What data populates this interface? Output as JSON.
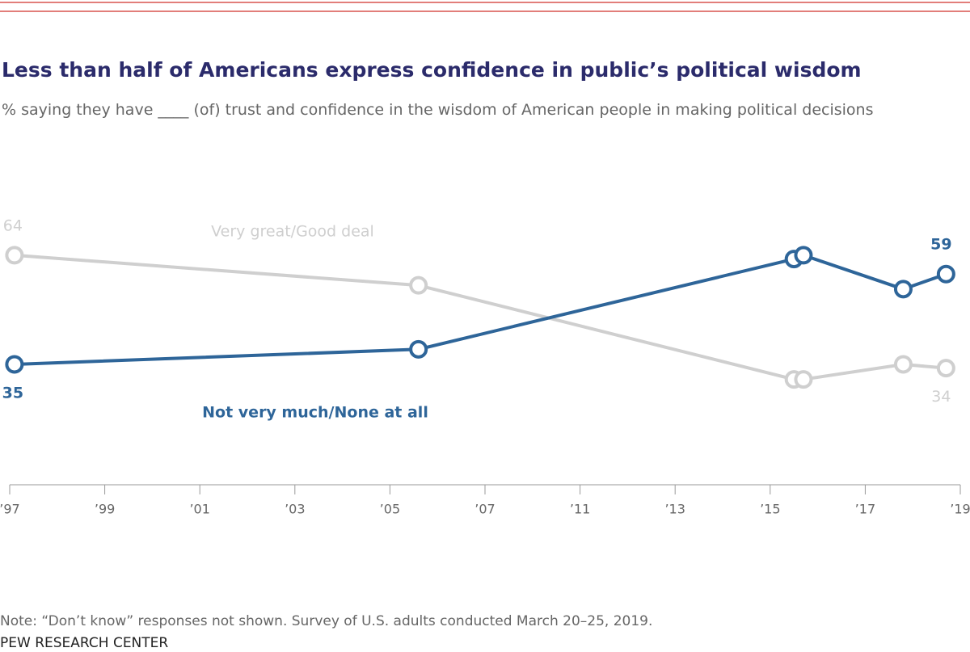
{
  "chart_data": {
    "type": "line",
    "title": "Less than half of Americans express confidence in public’s political wisdom",
    "subtitle": "% saying they have ____ (of) trust and confidence in the wisdom of American people in making political decisions",
    "x": [
      1997.1,
      2005.6,
      2015.5,
      2015.7,
      2017.8,
      2018.7
    ],
    "series": [
      {
        "name": "Very great/Good deal",
        "color": "#cfcfcf",
        "values": [
          64,
          56,
          31,
          31,
          35,
          34
        ]
      },
      {
        "name": "Not very much/None at all",
        "color": "#2e6599",
        "values": [
          35,
          39,
          63,
          64,
          55,
          59
        ]
      }
    ],
    "xlim": [
      1997,
      2019
    ],
    "xticks": [
      {
        "value": 1997,
        "label": "’97"
      },
      {
        "value": 1999,
        "label": "’99"
      },
      {
        "value": 2001,
        "label": "’01"
      },
      {
        "value": 2003,
        "label": "’03"
      },
      {
        "value": 2005,
        "label": "’05"
      },
      {
        "value": 2007,
        "label": "’07"
      },
      {
        "value": 2011,
        "label": "’11"
      },
      {
        "value": 2013,
        "label": "’13"
      },
      {
        "value": 2015,
        "label": "’15"
      },
      {
        "value": 2017,
        "label": "’17"
      },
      {
        "value": 2019,
        "label": "’19"
      }
    ],
    "ylim": [
      3,
      73
    ],
    "grid": false,
    "note": "Note: “Don’t know” responses not shown. Survey of U.S. adults conducted March 20–25, 2019.",
    "source": "PEW RESEARCH CENTER"
  }
}
